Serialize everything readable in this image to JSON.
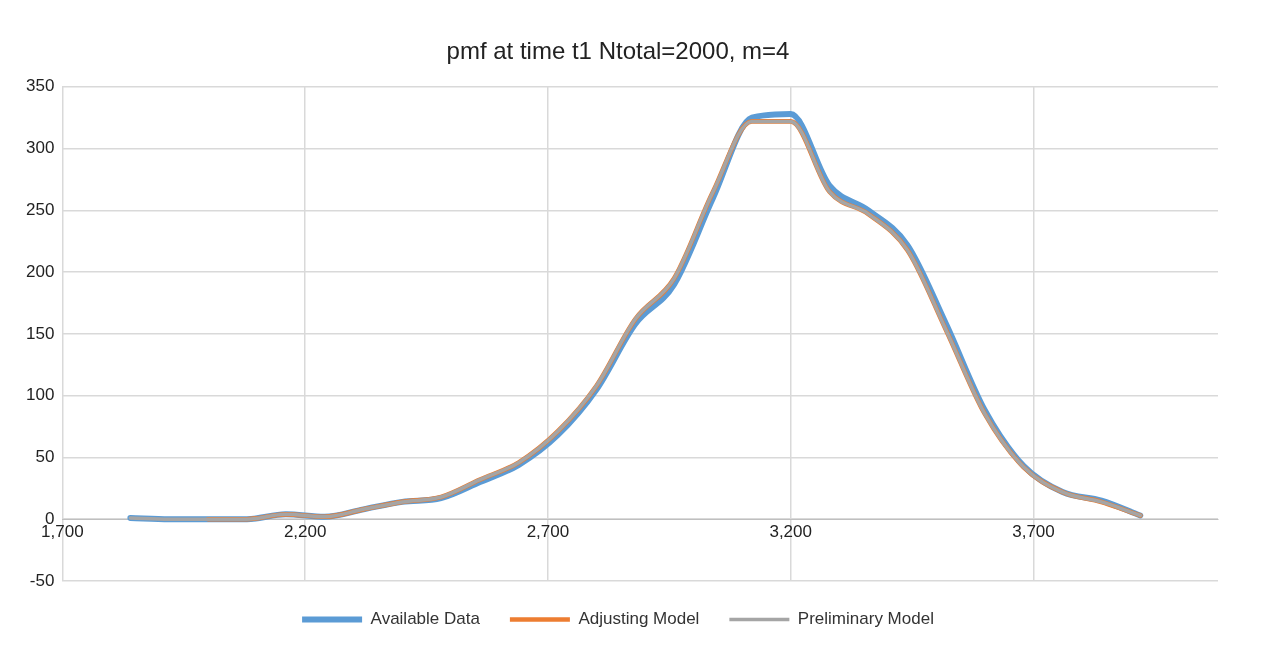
{
  "chart_data": {
    "type": "line",
    "title": "pmf at time t1 Ntotal=2000, m=4",
    "x": [
      1840,
      1920,
      2000,
      2080,
      2160,
      2240,
      2320,
      2400,
      2480,
      2560,
      2640,
      2720,
      2800,
      2880,
      2960,
      3040,
      3120,
      3200,
      3280,
      3360,
      3440,
      3520,
      3600,
      3680,
      3760,
      3840,
      3920
    ],
    "series": [
      {
        "name": "Available Data",
        "color": "#5b9bd5",
        "values": [
          1,
          0,
          0,
          0,
          4,
          2,
          8,
          14,
          17,
          30,
          44,
          68,
          105,
          158,
          190,
          260,
          325,
          328,
          270,
          250,
          222,
          158,
          88,
          43,
          22,
          15,
          3
        ]
      },
      {
        "name": "Adjusting Model",
        "color": "#ed7d31",
        "values": [
          null,
          null,
          0,
          0,
          4,
          2,
          8,
          14,
          18,
          32,
          46,
          71,
          108,
          162,
          195,
          265,
          322,
          322,
          265,
          247,
          218,
          153,
          85,
          42,
          22,
          14,
          3
        ]
      },
      {
        "name": "Preliminary Model",
        "color": "#a5a5a5",
        "values": [
          1,
          0,
          0,
          0,
          4,
          2,
          8,
          14,
          18,
          32,
          46,
          71,
          108,
          162,
          195,
          265,
          322,
          322,
          265,
          247,
          218,
          153,
          85,
          42,
          22,
          14,
          3
        ]
      }
    ],
    "xlim": [
      1700,
      4080
    ],
    "xticks": [
      {
        "value": 1700,
        "label": "1,700"
      },
      {
        "value": 2200,
        "label": "2,200"
      },
      {
        "value": 2700,
        "label": "2,700"
      },
      {
        "value": 3200,
        "label": "3,200"
      },
      {
        "value": 3700,
        "label": "3,700"
      }
    ],
    "ylim": [
      -50,
      350
    ],
    "yticks": [
      -50,
      0,
      50,
      100,
      150,
      200,
      250,
      300,
      350
    ],
    "grid": true,
    "legend": "bottom",
    "marker": "none",
    "line_style": "solid"
  }
}
